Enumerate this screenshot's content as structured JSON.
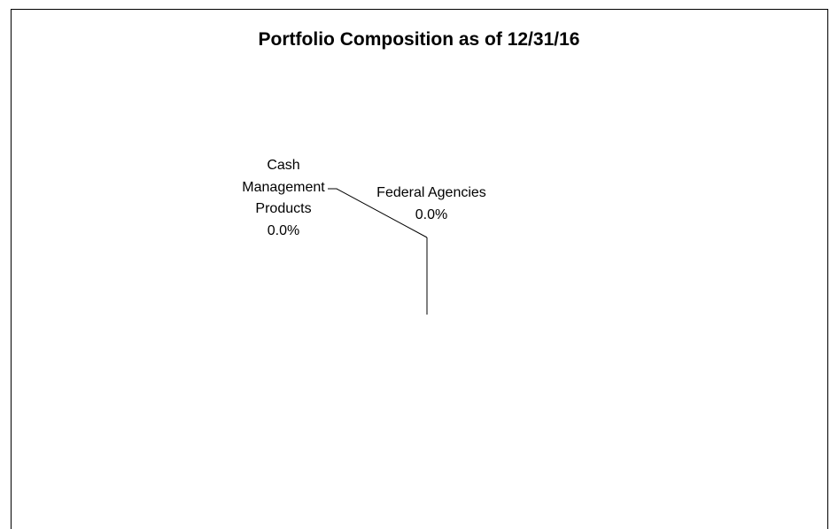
{
  "chart_data": {
    "type": "pie",
    "title": "Portfolio Composition as of 12/31/16",
    "categories": [
      "Cash Management Products",
      "Federal Agencies"
    ],
    "values": [
      0,
      0
    ],
    "value_labels": [
      "0.0%",
      "0.0%"
    ]
  }
}
